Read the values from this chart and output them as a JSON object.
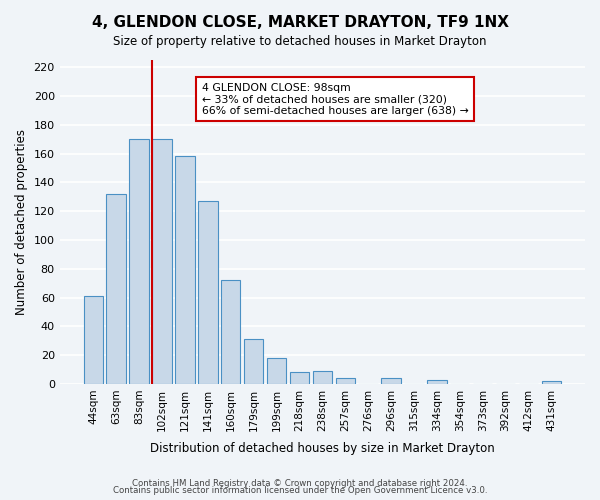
{
  "title": "4, GLENDON CLOSE, MARKET DRAYTON, TF9 1NX",
  "subtitle": "Size of property relative to detached houses in Market Drayton",
  "xlabel": "Distribution of detached houses by size in Market Drayton",
  "ylabel": "Number of detached properties",
  "bar_color": "#c8d8e8",
  "bar_edge_color": "#4a90c4",
  "background_color": "#f0f4f8",
  "grid_color": "#ffffff",
  "categories": [
    "44sqm",
    "63sqm",
    "83sqm",
    "102sqm",
    "121sqm",
    "141sqm",
    "160sqm",
    "179sqm",
    "199sqm",
    "218sqm",
    "238sqm",
    "257sqm",
    "276sqm",
    "296sqm",
    "315sqm",
    "334sqm",
    "354sqm",
    "373sqm",
    "392sqm",
    "412sqm",
    "431sqm"
  ],
  "values": [
    61,
    132,
    170,
    170,
    158,
    127,
    72,
    31,
    18,
    8,
    9,
    4,
    0,
    4,
    0,
    3,
    0,
    0,
    0,
    0,
    2
  ],
  "ylim": [
    0,
    225
  ],
  "yticks": [
    0,
    20,
    40,
    60,
    80,
    100,
    120,
    140,
    160,
    180,
    200,
    220
  ],
  "vline_index": 3,
  "vline_color": "#cc0000",
  "annotation_title": "4 GLENDON CLOSE: 98sqm",
  "annotation_line1": "← 33% of detached houses are smaller (320)",
  "annotation_line2": "66% of semi-detached houses are larger (638) →",
  "annotation_box_color": "#ffffff",
  "annotation_box_edge": "#cc0000",
  "footer1": "Contains HM Land Registry data © Crown copyright and database right 2024.",
  "footer2": "Contains public sector information licensed under the Open Government Licence v3.0."
}
